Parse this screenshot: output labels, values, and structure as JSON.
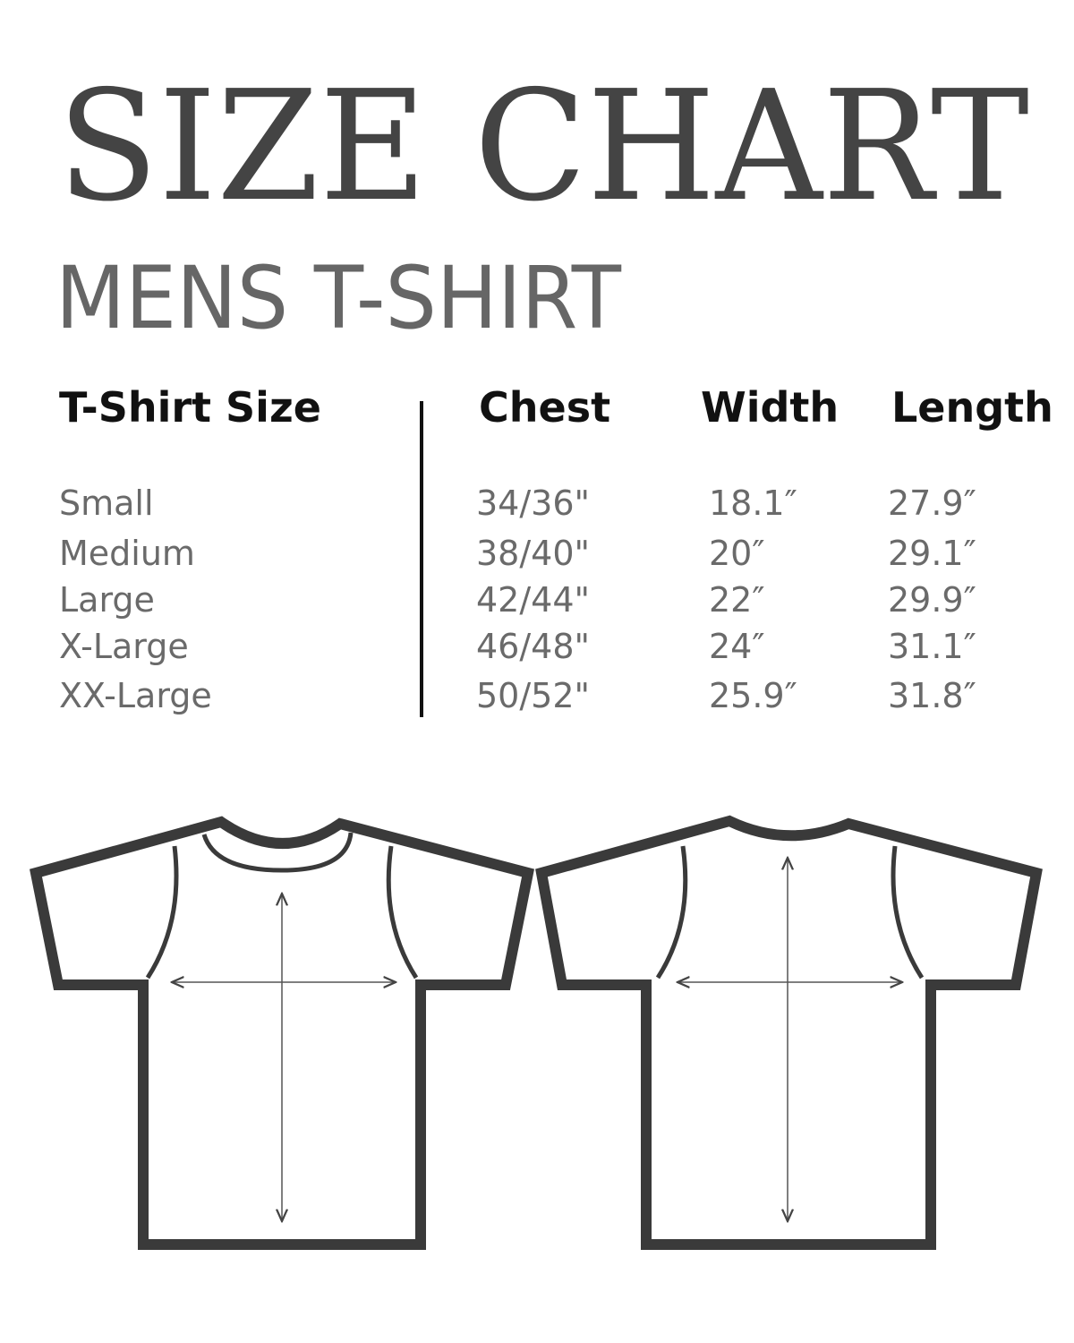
{
  "title": "SIZE CHART",
  "subtitle": "MENS T-SHIRT",
  "table": {
    "headers": [
      "T-Shirt Size",
      "Chest",
      "Width",
      "Length"
    ],
    "rows": [
      {
        "size": "Small",
        "chest": "34/36\"",
        "width": "18.1″",
        "length": "27.9″"
      },
      {
        "size": "Medium",
        "chest": "38/40\"",
        "width": "20″",
        "length": "29.1″"
      },
      {
        "size": "Large",
        "chest": "42/44\"",
        "width": "22″",
        "length": "29.9″"
      },
      {
        "size": "X-Large",
        "chest": "46/48\"",
        "width": "24″",
        "length": "31.1″"
      },
      {
        "size": "XX-Large",
        "chest": "50/52\"",
        "width": "25.9″",
        "length": "31.8″"
      }
    ]
  },
  "colors": {
    "title": "#444444",
    "subtitle": "#666666",
    "header": "#111111",
    "cell": "#6a6a6a",
    "outline": "#3a3a3a"
  },
  "illustrations": [
    "tshirt-front-icon",
    "tshirt-back-icon"
  ]
}
